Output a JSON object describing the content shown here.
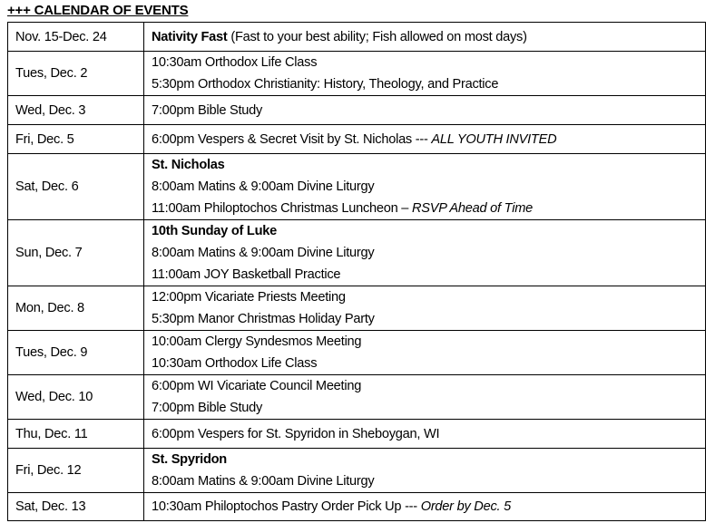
{
  "title": "+++ CALENDAR OF EVENTS",
  "rows": [
    {
      "date": "Nov. 15-Dec. 24",
      "h": 32,
      "lines": [
        [
          {
            "t": "Nativity Fast",
            "s": "b"
          },
          {
            "t": " (Fast to your best ability; Fish allowed on most days)"
          }
        ]
      ]
    },
    {
      "date": "Tues, Dec. 2",
      "h": 49,
      "lines": [
        [
          {
            "t": "10:30am Orthodox Life Class"
          }
        ],
        [
          {
            "t": "5:30pm Orthodox Christianity: History, Theology, and Practice"
          }
        ]
      ]
    },
    {
      "date": "Wed, Dec. 3",
      "h": 32,
      "lines": [
        [
          {
            "t": "7:00pm Bible Study"
          }
        ]
      ]
    },
    {
      "date": "Fri, Dec. 5",
      "h": 32,
      "lines": [
        [
          {
            "t": "6:00pm Vespers & Secret Visit by St. Nicholas --- "
          },
          {
            "t": "ALL YOUTH INVITED",
            "s": "i"
          }
        ]
      ]
    },
    {
      "date": "Sat, Dec. 6",
      "h": 73,
      "lines": [
        [
          {
            "t": "St. Nicholas",
            "s": "b"
          }
        ],
        [
          {
            "t": "8:00am Matins & 9:00am Divine Liturgy"
          }
        ],
        [
          {
            "t": "11:00am Philoptochos Christmas Luncheon – "
          },
          {
            "t": "RSVP Ahead of Time",
            "s": "i"
          }
        ]
      ]
    },
    {
      "date": "Sun, Dec. 7",
      "h": 72,
      "lines": [
        [
          {
            "t": "10th Sunday of Luke",
            "s": "b"
          }
        ],
        [
          {
            "t": "8:00am Matins & 9:00am Divine Liturgy"
          }
        ],
        [
          {
            "t": "11:00am JOY Basketball Practice"
          }
        ]
      ]
    },
    {
      "date": "Mon, Dec. 8",
      "h": 48,
      "lines": [
        [
          {
            "t": "12:00pm Vicariate Priests Meeting"
          }
        ],
        [
          {
            "t": "5:30pm Manor Christmas Holiday Party"
          }
        ]
      ]
    },
    {
      "date": "Tues, Dec. 9",
      "h": 48,
      "lines": [
        [
          {
            "t": "10:00am Clergy Syndesmos Meeting"
          }
        ],
        [
          {
            "t": "10:30am Orthodox Life Class"
          }
        ]
      ]
    },
    {
      "date": "Wed, Dec. 10",
      "h": 48,
      "lines": [
        [
          {
            "t": "6:00pm WI Vicariate Council Meeting"
          }
        ],
        [
          {
            "t": "7:00pm Bible Study"
          }
        ]
      ]
    },
    {
      "date": "Thu, Dec. 11",
      "h": 32,
      "lines": [
        [
          {
            "t": "6:00pm Vespers for St. Spyridon in Sheboygan, WI"
          }
        ]
      ]
    },
    {
      "date": "Fri, Dec. 12",
      "h": 49,
      "lines": [
        [
          {
            "t": "St. Spyridon",
            "s": "b"
          }
        ],
        [
          {
            "t": "8:00am Matins & 9:00am Divine Liturgy"
          }
        ]
      ]
    },
    {
      "date": "Sat, Dec. 13",
      "h": 31,
      "lines": [
        [
          {
            "t": "10:30am Philoptochos Pastry Order Pick Up --- "
          },
          {
            "t": "Order by Dec. 5",
            "s": "i"
          }
        ]
      ]
    }
  ]
}
